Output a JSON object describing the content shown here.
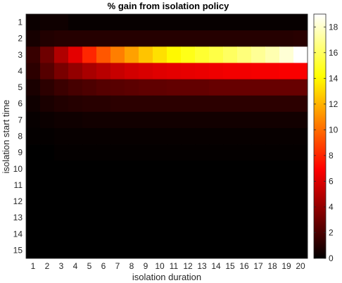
{
  "chart_data": {
    "type": "heatmap",
    "title": "% gain from isolation policy",
    "xlabel": "isolation duration",
    "ylabel": "isolation start time",
    "x_categories": [
      1,
      2,
      3,
      4,
      5,
      6,
      7,
      8,
      9,
      10,
      11,
      12,
      13,
      14,
      15,
      16,
      17,
      18,
      19,
      20
    ],
    "y_categories": [
      1,
      2,
      3,
      4,
      5,
      6,
      7,
      8,
      9,
      10,
      11,
      12,
      13,
      14,
      15
    ],
    "colormap": "hot",
    "clim": [
      0,
      19
    ],
    "colorbar_ticks": [
      0,
      2,
      4,
      6,
      8,
      10,
      12,
      14,
      16,
      18
    ],
    "values": [
      [
        0.3,
        0.4,
        0.4,
        0.2,
        0.2,
        0.2,
        0.2,
        0.2,
        0.2,
        0.2,
        0.2,
        0.2,
        0.2,
        0.2,
        0.2,
        0.2,
        0.2,
        0.2,
        0.2,
        0.2
      ],
      [
        0.6,
        0.9,
        1.0,
        1.0,
        1.0,
        1.0,
        1.0,
        1.0,
        1.0,
        1.0,
        1.0,
        1.0,
        1.0,
        1.0,
        1.0,
        1.0,
        1.0,
        1.0,
        1.0,
        1.1
      ],
      [
        1.5,
        3.0,
        4.8,
        6.2,
        8.0,
        9.4,
        10.5,
        11.5,
        12.5,
        13.3,
        14.0,
        14.6,
        15.1,
        15.5,
        16.0,
        16.5,
        17.0,
        17.5,
        18.2,
        19.0
      ],
      [
        1.2,
        2.3,
        3.3,
        4.0,
        4.6,
        5.0,
        5.4,
        5.7,
        5.9,
        6.1,
        6.2,
        6.3,
        6.4,
        6.5,
        6.6,
        6.6,
        6.7,
        6.7,
        6.8,
        6.8
      ],
      [
        0.7,
        1.2,
        1.6,
        1.9,
        2.1,
        2.3,
        2.4,
        2.5,
        2.6,
        2.6,
        2.7,
        2.7,
        2.7,
        2.8,
        2.8,
        2.8,
        2.8,
        2.8,
        2.8,
        2.8
      ],
      [
        0.4,
        0.7,
        0.9,
        1.0,
        1.1,
        1.1,
        1.2,
        1.2,
        1.2,
        1.2,
        1.2,
        1.2,
        1.2,
        1.2,
        1.2,
        1.2,
        1.2,
        1.2,
        1.2,
        1.2
      ],
      [
        0.2,
        0.3,
        0.4,
        0.4,
        0.5,
        0.5,
        0.5,
        0.5,
        0.5,
        0.5,
        0.5,
        0.5,
        0.5,
        0.5,
        0.5,
        0.5,
        0.5,
        0.5,
        0.5,
        0.5
      ],
      [
        0.1,
        0.1,
        0.2,
        0.2,
        0.2,
        0.2,
        0.2,
        0.2,
        0.2,
        0.2,
        0.2,
        0.2,
        0.2,
        0.2,
        0.2,
        0.2,
        0.2,
        0.2,
        0.2,
        0.2
      ],
      [
        0,
        0,
        0.1,
        0.1,
        0.1,
        0.1,
        0.1,
        0.1,
        0.1,
        0.1,
        0.1,
        0.1,
        0.1,
        0.1,
        0.1,
        0.1,
        0.1,
        0.1,
        0.1,
        0.1
      ],
      [
        0,
        0,
        0,
        0,
        0,
        0,
        0,
        0,
        0,
        0,
        0,
        0,
        0,
        0,
        0,
        0,
        0,
        0,
        0,
        0
      ],
      [
        0,
        0,
        0,
        0,
        0,
        0,
        0,
        0,
        0,
        0,
        0,
        0,
        0,
        0,
        0,
        0,
        0,
        0,
        0,
        0
      ],
      [
        0,
        0,
        0,
        0,
        0,
        0,
        0,
        0,
        0,
        0,
        0,
        0,
        0,
        0,
        0,
        0,
        0,
        0,
        0,
        0
      ],
      [
        0,
        0,
        0,
        0,
        0,
        0,
        0,
        0,
        0,
        0,
        0,
        0,
        0,
        0,
        0,
        0,
        0,
        0,
        0,
        0
      ],
      [
        0,
        0,
        0,
        0,
        0,
        0,
        0,
        0,
        0,
        0,
        0,
        0,
        0,
        0,
        0,
        0,
        0,
        0,
        0,
        0
      ],
      [
        0,
        0,
        0,
        0,
        0,
        0,
        0,
        0,
        0,
        0,
        0,
        0,
        0,
        0,
        0,
        0,
        0,
        0,
        0,
        0
      ]
    ]
  }
}
